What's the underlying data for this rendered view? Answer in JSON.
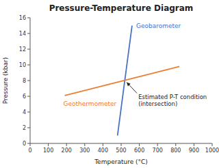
{
  "chart_data": {
    "type": "line",
    "title": "Pressure-Temperature Diagram",
    "xlabel": "Temperature (°C)",
    "ylabel": "Pressure (kbar)",
    "xlim": [
      0,
      1000
    ],
    "ylim": [
      0,
      16
    ],
    "xticks": [
      0,
      100,
      200,
      300,
      400,
      500,
      600,
      700,
      800,
      900,
      1000
    ],
    "yticks": [
      0,
      2,
      4,
      6,
      8,
      10,
      12,
      14,
      16
    ],
    "grid": false,
    "series": [
      {
        "name": "Geobarometer",
        "color": "#4472C4",
        "x": [
          480,
          560
        ],
        "values": [
          1,
          15
        ]
      },
      {
        "name": "Geothermometer",
        "color": "#ED7D31",
        "x": [
          190,
          820
        ],
        "values": [
          6.1,
          9.8
        ]
      }
    ],
    "annotations": [
      {
        "text": "Estimated P-T condition\n(intersection)",
        "x": 527,
        "y": 7.95
      }
    ]
  }
}
